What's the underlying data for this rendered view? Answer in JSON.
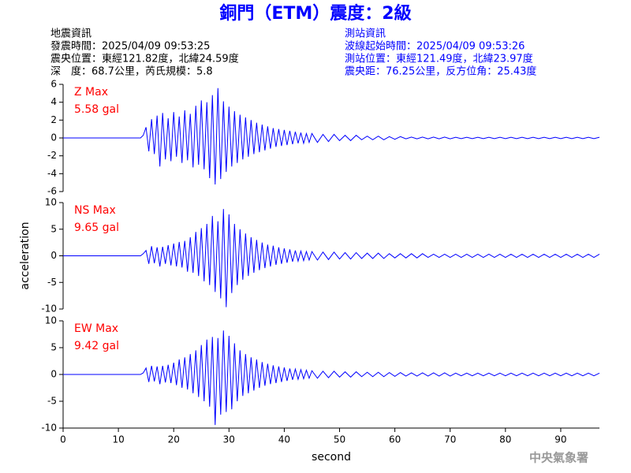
{
  "header": {
    "title": "銅門（ETM）震度：2級",
    "left": [
      "地震資訊",
      "發震時間：2025/04/09 09:53:25",
      "震央位置：東經121.82度，北緯24.59度",
      "深　度：68.7公里，芮氏規模：5.8"
    ],
    "right": [
      "測站資訊",
      "波線起始時間：2025/04/09 09:53:26",
      "測站位置：東經121.49度，北緯23.97度",
      "震央距：76.25公里，反方位角：25.43度"
    ]
  },
  "footer": {
    "watermark": "中央氣象署"
  },
  "chart_data": [
    {
      "type": "line",
      "color": "#0000ff",
      "annotations": [
        "Z Max",
        "5.58 gal"
      ],
      "annotation_color": "#ff0000",
      "xlim": [
        0,
        97
      ],
      "ylim": [
        -6,
        6
      ],
      "yticks": [
        -6,
        -4,
        -2,
        0,
        2,
        4,
        6
      ],
      "x": [
        0,
        5,
        10,
        14,
        14.5,
        15,
        15.5,
        16,
        16.5,
        17,
        17.5,
        18,
        18.5,
        19,
        19.5,
        20,
        20.5,
        21,
        21.5,
        22,
        22.5,
        23,
        23.5,
        24,
        24.5,
        25,
        25.5,
        26,
        26.5,
        27,
        27.5,
        28,
        28.5,
        29,
        29.5,
        30,
        30.5,
        31,
        31.5,
        32,
        32.5,
        33,
        33.5,
        34,
        34.5,
        35,
        35.5,
        36,
        36.5,
        37,
        37.5,
        38,
        38.5,
        39,
        39.5,
        40,
        40.5,
        41,
        41.5,
        42,
        42.5,
        43,
        43.5,
        44,
        44.5,
        45,
        46,
        47,
        48,
        49,
        50,
        51,
        52,
        53,
        54,
        55,
        56,
        57,
        58,
        59,
        60,
        61,
        62,
        63,
        64,
        65,
        66,
        67,
        68,
        69,
        70,
        71,
        72,
        73,
        74,
        75,
        76,
        77,
        78,
        79,
        80,
        81,
        82,
        83,
        84,
        85,
        86,
        87,
        88,
        89,
        90,
        91,
        92,
        93,
        94,
        95,
        96,
        97
      ],
      "values": [
        0,
        0,
        0,
        0,
        0.3,
        1.2,
        -1.5,
        2.1,
        -1.8,
        2.5,
        -3.2,
        2.8,
        -2.4,
        2.2,
        -2.6,
        2.9,
        -2.1,
        2.4,
        -2.8,
        3.1,
        -2.5,
        2.7,
        -3.3,
        3.6,
        -3.0,
        4.2,
        -3.5,
        4.0,
        -4.5,
        4.8,
        -5.2,
        5.58,
        -4.6,
        4.1,
        -3.8,
        3.5,
        -3.2,
        3.0,
        -2.8,
        2.6,
        -2.4,
        2.3,
        -2.1,
        2.0,
        -1.8,
        1.7,
        -1.6,
        1.5,
        -1.4,
        1.3,
        -1.2,
        1.1,
        -1.0,
        1.0,
        -0.9,
        0.9,
        -0.8,
        0.8,
        -0.7,
        0.7,
        -0.6,
        0.6,
        -0.6,
        0.5,
        -0.5,
        0.5,
        -0.5,
        0.4,
        -0.4,
        0.4,
        -0.3,
        0.3,
        -0.3,
        0.3,
        -0.2,
        0.2,
        -0.2,
        0.2,
        -0.2,
        0.15,
        -0.15,
        0.15,
        -0.1,
        0.1,
        -0.1,
        0.1,
        -0.1,
        0.1,
        -0.1,
        0.1,
        -0.1,
        0.08,
        -0.08,
        0.08,
        -0.08,
        0.08,
        -0.08,
        0.08,
        -0.08,
        0.08,
        -0.08,
        0.08,
        -0.08,
        0.08,
        -0.08,
        0.08,
        -0.08,
        0.08,
        -0.08,
        0.08,
        -0.08,
        0.08,
        -0.08,
        0.08,
        -0.08,
        0.08,
        -0.08,
        0.08
      ]
    },
    {
      "type": "line",
      "color": "#0000ff",
      "annotations": [
        "NS Max",
        "9.65 gal"
      ],
      "annotation_color": "#ff0000",
      "ylabel": "acceleration",
      "xlim": [
        0,
        97
      ],
      "ylim": [
        -10,
        10
      ],
      "yticks": [
        -10,
        -5,
        0,
        5,
        10
      ],
      "x": [
        0,
        5,
        10,
        14,
        14.5,
        15,
        15.5,
        16,
        16.5,
        17,
        17.5,
        18,
        18.5,
        19,
        19.5,
        20,
        20.5,
        21,
        21.5,
        22,
        22.5,
        23,
        23.5,
        24,
        24.5,
        25,
        25.5,
        26,
        26.5,
        27,
        27.5,
        28,
        28.5,
        29,
        29.5,
        30,
        30.5,
        31,
        31.5,
        32,
        32.5,
        33,
        33.5,
        34,
        34.5,
        35,
        35.5,
        36,
        36.5,
        37,
        37.5,
        38,
        38.5,
        39,
        39.5,
        40,
        40.5,
        41,
        41.5,
        42,
        42.5,
        43,
        43.5,
        44,
        44.5,
        45,
        46,
        47,
        48,
        49,
        50,
        51,
        52,
        53,
        54,
        55,
        56,
        57,
        58,
        59,
        60,
        61,
        62,
        63,
        64,
        65,
        66,
        67,
        68,
        69,
        70,
        71,
        72,
        73,
        74,
        75,
        76,
        77,
        78,
        79,
        80,
        81,
        82,
        83,
        84,
        85,
        86,
        87,
        88,
        89,
        90,
        91,
        92,
        93,
        94,
        95,
        96,
        97
      ],
      "values": [
        0,
        0,
        0,
        0,
        0.4,
        1.0,
        -1.5,
        1.8,
        -1.4,
        1.6,
        -2.0,
        1.7,
        -1.5,
        2.0,
        -1.8,
        2.3,
        -2.0,
        2.6,
        -2.2,
        2.8,
        -3.0,
        3.5,
        -3.2,
        4.5,
        -3.8,
        5.2,
        -4.8,
        6.0,
        -5.5,
        7.5,
        -6.8,
        6.5,
        -8.0,
        8.8,
        -9.65,
        7.8,
        -7.0,
        6.0,
        -5.5,
        5.0,
        -4.5,
        4.2,
        -3.8,
        3.5,
        -3.2,
        3.0,
        -2.7,
        2.5,
        -2.3,
        2.1,
        -2.0,
        1.9,
        -1.7,
        1.6,
        -1.5,
        1.4,
        -1.3,
        1.2,
        -1.1,
        1.0,
        -1.0,
        0.9,
        -0.9,
        0.8,
        -0.8,
        0.8,
        -0.8,
        0.7,
        -0.7,
        0.7,
        -0.6,
        0.6,
        -0.6,
        0.6,
        -0.5,
        0.5,
        -0.5,
        0.5,
        -0.5,
        0.4,
        -0.4,
        0.4,
        -0.4,
        0.4,
        -0.4,
        0.4,
        -0.3,
        0.3,
        -0.3,
        0.3,
        -0.3,
        0.3,
        -0.3,
        0.3,
        -0.3,
        0.3,
        -0.3,
        0.3,
        -0.3,
        0.3,
        -0.3,
        0.3,
        -0.3,
        0.3,
        -0.3,
        0.3,
        -0.3,
        0.3,
        -0.3,
        0.3,
        -0.3,
        0.3,
        -0.3,
        0.3,
        -0.3,
        0.3,
        -0.3,
        0.3
      ]
    },
    {
      "type": "line",
      "color": "#0000ff",
      "annotations": [
        "EW Max",
        "9.42 gal"
      ],
      "annotation_color": "#ff0000",
      "xlabel": "second",
      "xlim": [
        0,
        97
      ],
      "xticks": [
        0,
        10,
        20,
        30,
        40,
        50,
        60,
        70,
        80,
        90
      ],
      "ylim": [
        -10,
        10
      ],
      "yticks": [
        -10,
        -5,
        0,
        5,
        10
      ],
      "x": [
        0,
        5,
        10,
        14,
        14.5,
        15,
        15.5,
        16,
        16.5,
        17,
        17.5,
        18,
        18.5,
        19,
        19.5,
        20,
        20.5,
        21,
        21.5,
        22,
        22.5,
        23,
        23.5,
        24,
        24.5,
        25,
        25.5,
        26,
        26.5,
        27,
        27.5,
        28,
        28.5,
        29,
        29.5,
        30,
        30.5,
        31,
        31.5,
        32,
        32.5,
        33,
        33.5,
        34,
        34.5,
        35,
        35.5,
        36,
        36.5,
        37,
        37.5,
        38,
        38.5,
        39,
        39.5,
        40,
        40.5,
        41,
        41.5,
        42,
        42.5,
        43,
        43.5,
        44,
        44.5,
        45,
        46,
        47,
        48,
        49,
        50,
        51,
        52,
        53,
        54,
        55,
        56,
        57,
        58,
        59,
        60,
        61,
        62,
        63,
        64,
        65,
        66,
        67,
        68,
        69,
        70,
        71,
        72,
        73,
        74,
        75,
        76,
        77,
        78,
        79,
        80,
        81,
        82,
        83,
        84,
        85,
        86,
        87,
        88,
        89,
        90,
        91,
        92,
        93,
        94,
        95,
        96,
        97
      ],
      "values": [
        0,
        0,
        0,
        0,
        0.3,
        1.2,
        -1.4,
        1.6,
        -1.3,
        1.5,
        -1.8,
        1.6,
        -1.5,
        1.8,
        -1.6,
        2.2,
        -2.0,
        2.8,
        -2.5,
        3.2,
        -2.8,
        3.8,
        -3.5,
        4.5,
        -4.2,
        5.5,
        -5.0,
        6.5,
        -6.0,
        7.0,
        -9.42,
        6.8,
        -7.5,
        8.2,
        -7.0,
        7.2,
        -6.5,
        5.8,
        -5.0,
        4.5,
        -4.0,
        3.8,
        -3.5,
        3.2,
        -3.0,
        2.8,
        -2.5,
        2.3,
        -2.1,
        2.0,
        -1.8,
        1.7,
        -1.6,
        1.5,
        -1.4,
        1.3,
        -1.2,
        1.1,
        -1.0,
        1.0,
        -0.9,
        0.9,
        -0.8,
        0.8,
        -0.7,
        0.7,
        -0.7,
        0.6,
        -0.6,
        0.6,
        -0.5,
        0.5,
        -0.5,
        0.5,
        -0.4,
        0.4,
        -0.4,
        0.4,
        -0.4,
        0.35,
        -0.35,
        0.35,
        -0.3,
        0.3,
        -0.3,
        0.3,
        -0.3,
        0.3,
        -0.3,
        0.3,
        -0.3,
        0.25,
        -0.25,
        0.25,
        -0.25,
        0.25,
        -0.25,
        0.25,
        -0.25,
        0.25,
        -0.25,
        0.25,
        -0.25,
        0.25,
        -0.25,
        0.25,
        -0.25,
        0.25,
        -0.25,
        0.25,
        -0.25,
        0.25,
        -0.25,
        0.25,
        -0.25,
        0.25,
        -0.25,
        0.25
      ]
    }
  ]
}
